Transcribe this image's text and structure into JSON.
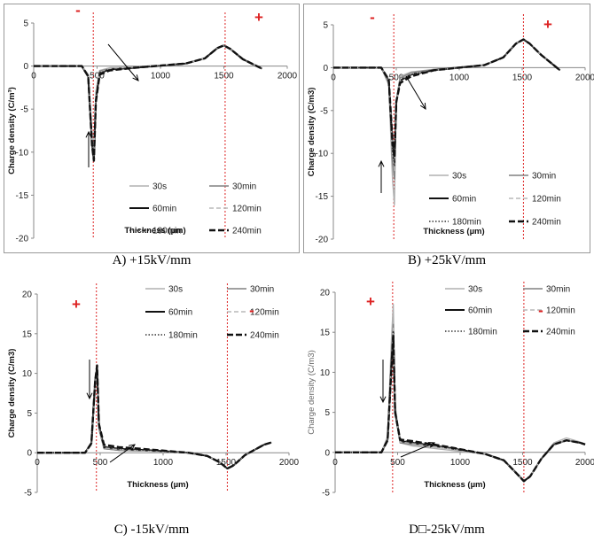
{
  "figure": {
    "captions": [
      "A) +15kV/mm",
      "B) +25kV/mm",
      "C) -15kV/mm",
      "D□-25kV/mm"
    ]
  },
  "styles": {
    "30s": {
      "color": "#b0b0b0",
      "dash": "",
      "width": 1.4
    },
    "30min": {
      "color": "#808080",
      "dash": "",
      "width": 1.4
    },
    "60min": {
      "color": "#111111",
      "dash": "",
      "width": 2.0
    },
    "120min": {
      "color": "#b8b8b8",
      "dash": "5,3",
      "width": 1.4
    },
    "180min": {
      "color": "#333333",
      "dash": "1.5,2",
      "width": 1.6
    },
    "240min": {
      "color": "#111111",
      "dash": "7,3",
      "width": 2.4
    },
    "electrode_line_color": "#dd2222",
    "polarity_color": "#dd2222"
  },
  "chart_data": [
    {
      "type": "line",
      "caption": "A) +15kV/mm",
      "xlabel": "Thickness (µm)",
      "ylabel": "Charge density (C/m³)",
      "xlim": [
        0,
        2000
      ],
      "ylim": [
        -20,
        5
      ],
      "xticks": [
        0,
        500,
        1000,
        1500,
        2000
      ],
      "yticks": [
        5,
        0,
        -5,
        -10,
        -15,
        -20
      ],
      "grid": false,
      "legend_position": "bottom-right",
      "polarity_left": "-",
      "polarity_right": "+",
      "electrode_lines_x": [
        470,
        1510
      ],
      "series": [
        {
          "name": "30s",
          "x": [
            0,
            380,
            430,
            460,
            475,
            490,
            520,
            600,
            800,
            1200,
            1350,
            1450,
            1500,
            1550,
            1650,
            1800
          ],
          "y": [
            0,
            0,
            -1,
            -8,
            -10,
            -3,
            -0.5,
            -0.2,
            -0.1,
            0.3,
            0.9,
            2.1,
            2.4,
            2.0,
            0.8,
            -0.3
          ]
        },
        {
          "name": "30min",
          "x": [
            0,
            380,
            430,
            460,
            475,
            490,
            520,
            600,
            800,
            1200,
            1350,
            1450,
            1500,
            1550,
            1650,
            1800
          ],
          "y": [
            0,
            0,
            -1,
            -8.5,
            -10.5,
            -3.5,
            -0.6,
            -0.3,
            -0.1,
            0.3,
            0.9,
            2.1,
            2.4,
            2.0,
            0.8,
            -0.3
          ]
        },
        {
          "name": "60min",
          "x": [
            0,
            380,
            430,
            460,
            475,
            490,
            520,
            600,
            800,
            1200,
            1350,
            1450,
            1500,
            1550,
            1650,
            1800
          ],
          "y": [
            0,
            0,
            -1.2,
            -9,
            -11,
            -4,
            -0.8,
            -0.4,
            -0.2,
            0.3,
            0.9,
            2.1,
            2.4,
            2.0,
            0.8,
            -0.3
          ]
        },
        {
          "name": "120min",
          "x": [
            0,
            380,
            430,
            460,
            475,
            490,
            520,
            600,
            800,
            1200,
            1350,
            1450,
            1500,
            1550,
            1650,
            1800
          ],
          "y": [
            0,
            0,
            -1,
            -8.5,
            -10.5,
            -3.5,
            -0.7,
            -0.3,
            -0.1,
            0.3,
            0.9,
            2.1,
            2.4,
            2.0,
            0.8,
            -0.3
          ]
        },
        {
          "name": "180min",
          "x": [
            0,
            380,
            430,
            460,
            475,
            490,
            520,
            600,
            800,
            1200,
            1350,
            1450,
            1500,
            1550,
            1650,
            1800
          ],
          "y": [
            0,
            0,
            -1.1,
            -9,
            -10.8,
            -4,
            -0.8,
            -0.4,
            -0.2,
            0.3,
            0.9,
            2.1,
            2.4,
            2.0,
            0.8,
            -0.3
          ]
        },
        {
          "name": "240min",
          "x": [
            0,
            380,
            430,
            460,
            475,
            490,
            520,
            600,
            800,
            1200,
            1350,
            1450,
            1500,
            1550,
            1650,
            1800
          ],
          "y": [
            0,
            0,
            -1.2,
            -9.2,
            -11,
            -4.2,
            -1,
            -0.5,
            -0.2,
            0.3,
            0.9,
            2.1,
            2.4,
            2.0,
            0.8,
            -0.3
          ]
        }
      ]
    },
    {
      "type": "line",
      "caption": "B) +25kV/mm",
      "xlabel": "Thickness (µm)",
      "ylabel": "Charge density (C/m3)",
      "xlim": [
        0,
        2000
      ],
      "ylim": [
        -20,
        5
      ],
      "xticks": [
        0,
        500,
        1000,
        1500,
        2000
      ],
      "yticks": [
        5,
        0,
        -5,
        -10,
        -15,
        -20
      ],
      "grid": false,
      "legend_position": "bottom-right",
      "polarity_left": "-",
      "polarity_right": "+",
      "electrode_lines_x": [
        480,
        1510
      ],
      "series": [
        {
          "name": "30s",
          "x": [
            0,
            380,
            440,
            470,
            485,
            500,
            530,
            620,
            800,
            1200,
            1350,
            1450,
            1510,
            1560,
            1650,
            1800
          ],
          "y": [
            0,
            0,
            -2,
            -13,
            -16,
            -4,
            -1,
            -0.5,
            -0.2,
            0.3,
            1.2,
            2.8,
            3.3,
            2.8,
            1.5,
            -0.3
          ]
        },
        {
          "name": "30min",
          "x": [
            0,
            380,
            440,
            470,
            485,
            500,
            530,
            620,
            800,
            1200,
            1350,
            1450,
            1510,
            1560,
            1650,
            1800
          ],
          "y": [
            0,
            0,
            -1.8,
            -11,
            -13,
            -4,
            -1.2,
            -0.6,
            -0.2,
            0.3,
            1.2,
            2.8,
            3.3,
            2.8,
            1.5,
            -0.3
          ]
        },
        {
          "name": "60min",
          "x": [
            0,
            380,
            440,
            470,
            485,
            500,
            530,
            620,
            800,
            1200,
            1350,
            1450,
            1510,
            1560,
            1650,
            1800
          ],
          "y": [
            0,
            0,
            -1.5,
            -9,
            -11,
            -4,
            -1.5,
            -0.8,
            -0.3,
            0.3,
            1.2,
            2.8,
            3.3,
            2.8,
            1.5,
            -0.3
          ]
        },
        {
          "name": "120min",
          "x": [
            0,
            380,
            440,
            470,
            485,
            500,
            530,
            620,
            800,
            1200,
            1350,
            1450,
            1510,
            1560,
            1650,
            1800
          ],
          "y": [
            0,
            0,
            -1.6,
            -10,
            -12,
            -4,
            -1.4,
            -0.7,
            -0.3,
            0.3,
            1.2,
            2.8,
            3.3,
            2.8,
            1.5,
            -0.3
          ]
        },
        {
          "name": "180min",
          "x": [
            0,
            380,
            440,
            470,
            485,
            500,
            530,
            620,
            800,
            1200,
            1350,
            1450,
            1510,
            1560,
            1650,
            1800
          ],
          "y": [
            0,
            0,
            -1.5,
            -9.5,
            -11.5,
            -4,
            -1.5,
            -0.8,
            -0.3,
            0.3,
            1.2,
            2.8,
            3.3,
            2.8,
            1.5,
            -0.3
          ]
        },
        {
          "name": "240min",
          "x": [
            0,
            380,
            440,
            470,
            485,
            500,
            530,
            620,
            800,
            1200,
            1350,
            1450,
            1510,
            1560,
            1650,
            1800
          ],
          "y": [
            0,
            0,
            -1.4,
            -8.5,
            -10.5,
            -4,
            -1.8,
            -1,
            -0.3,
            0.3,
            1.2,
            2.8,
            3.3,
            2.8,
            1.5,
            -0.3
          ]
        }
      ]
    },
    {
      "type": "line",
      "caption": "C) -15kV/mm",
      "xlabel": "Thickness (µm)",
      "ylabel": "Charge density (C/m3)",
      "xlim": [
        0,
        2000
      ],
      "ylim": [
        -5,
        20
      ],
      "xticks": [
        0,
        500,
        1000,
        1500,
        2000
      ],
      "yticks": [
        20,
        15,
        10,
        5,
        0,
        -5
      ],
      "grid": false,
      "legend_position": "top-right",
      "polarity_left": "+",
      "polarity_right": "-",
      "electrode_lines_x": [
        470,
        1510
      ],
      "series": [
        {
          "name": "30s",
          "x": [
            0,
            380,
            430,
            460,
            475,
            490,
            530,
            650,
            900,
            1200,
            1350,
            1450,
            1510,
            1560,
            1650,
            1800,
            1860
          ],
          "y": [
            0,
            0,
            1,
            8,
            10,
            3,
            0.5,
            0.3,
            0.2,
            0,
            -0.4,
            -1.2,
            -2,
            -1.6,
            -0.3,
            1,
            1.3
          ]
        },
        {
          "name": "30min",
          "x": [
            0,
            380,
            430,
            460,
            475,
            490,
            530,
            650,
            900,
            1200,
            1350,
            1450,
            1510,
            1560,
            1650,
            1800,
            1860
          ],
          "y": [
            0,
            0,
            1,
            8.5,
            10.3,
            3,
            0.5,
            0.3,
            0.2,
            0,
            -0.4,
            -1.2,
            -2,
            -1.6,
            -0.3,
            1,
            1.3
          ]
        },
        {
          "name": "60min",
          "x": [
            0,
            380,
            430,
            460,
            475,
            490,
            530,
            650,
            900,
            1200,
            1350,
            1450,
            1510,
            1560,
            1650,
            1800,
            1860
          ],
          "y": [
            0,
            0,
            1.2,
            9,
            10.8,
            3.5,
            0.7,
            0.5,
            0.3,
            0,
            -0.4,
            -1.2,
            -2,
            -1.6,
            -0.3,
            1,
            1.3
          ]
        },
        {
          "name": "120min",
          "x": [
            0,
            380,
            430,
            460,
            475,
            490,
            530,
            650,
            900,
            1200,
            1350,
            1450,
            1510,
            1560,
            1650,
            1800,
            1860
          ],
          "y": [
            0,
            0,
            1,
            8.5,
            10.4,
            3.2,
            0.6,
            0.4,
            0.2,
            0,
            -0.4,
            -1.2,
            -2,
            -1.6,
            -0.3,
            1,
            1.3
          ]
        },
        {
          "name": "180min",
          "x": [
            0,
            380,
            430,
            460,
            475,
            490,
            530,
            650,
            900,
            1200,
            1350,
            1450,
            1510,
            1560,
            1650,
            1800,
            1860
          ],
          "y": [
            0,
            0,
            1.1,
            8.8,
            10.6,
            3.4,
            0.8,
            0.5,
            0.3,
            0,
            -0.4,
            -1.2,
            -2,
            -1.6,
            -0.3,
            1,
            1.3
          ]
        },
        {
          "name": "240min",
          "x": [
            0,
            380,
            430,
            460,
            475,
            490,
            530,
            650,
            900,
            1200,
            1350,
            1450,
            1510,
            1560,
            1650,
            1800,
            1860
          ],
          "y": [
            0,
            0,
            1.2,
            9,
            11,
            3.6,
            1,
            0.7,
            0.4,
            0,
            -0.4,
            -1.2,
            -2,
            -1.6,
            -0.3,
            1,
            1.3
          ]
        }
      ]
    },
    {
      "type": "line",
      "caption": "D□-25kV/mm",
      "xlabel": "Thickness (µm)",
      "ylabel": "Charge density (C/m3)",
      "xlim": [
        0,
        2000
      ],
      "ylim": [
        -5,
        20
      ],
      "xticks": [
        0,
        500,
        1000,
        1500,
        2000
      ],
      "yticks": [
        20,
        15,
        10,
        5,
        0,
        -5
      ],
      "grid": false,
      "legend_position": "top-right",
      "polarity_left": "+",
      "polarity_right": "-",
      "electrode_lines_x": [
        460,
        1510
      ],
      "series": [
        {
          "name": "30s",
          "x": [
            0,
            370,
            420,
            450,
            465,
            480,
            520,
            620,
            900,
            1200,
            1350,
            1450,
            1510,
            1560,
            1650,
            1750,
            1850,
            1960,
            2000
          ],
          "y": [
            0,
            0,
            2,
            14,
            18.5,
            6,
            1.2,
            0.8,
            0.3,
            -0.2,
            -1,
            -2.5,
            -3.5,
            -3,
            -0.8,
            1.2,
            1.8,
            1.3,
            1
          ]
        },
        {
          "name": "30min",
          "x": [
            0,
            370,
            420,
            450,
            465,
            480,
            520,
            620,
            900,
            1200,
            1350,
            1450,
            1510,
            1560,
            1650,
            1750,
            1850,
            1960,
            2000
          ],
          "y": [
            0,
            0,
            1.8,
            12,
            16,
            5,
            1.2,
            1,
            0.5,
            -0.2,
            -1,
            -2.6,
            -3.6,
            -3,
            -0.8,
            1,
            1.5,
            1.2,
            1
          ]
        },
        {
          "name": "60min",
          "x": [
            0,
            370,
            420,
            450,
            465,
            480,
            520,
            620,
            900,
            1200,
            1350,
            1450,
            1510,
            1560,
            1650,
            1750,
            1850,
            1960,
            2000
          ],
          "y": [
            0,
            0,
            1.6,
            11,
            15,
            5,
            1.4,
            1.2,
            0.6,
            -0.2,
            -1,
            -2.6,
            -3.6,
            -3,
            -0.8,
            1,
            1.5,
            1.2,
            1
          ]
        },
        {
          "name": "120min",
          "x": [
            0,
            370,
            420,
            450,
            465,
            480,
            520,
            620,
            900,
            1200,
            1350,
            1450,
            1510,
            1560,
            1650,
            1750,
            1850,
            1960,
            2000
          ],
          "y": [
            0,
            0,
            1.7,
            11.5,
            15.5,
            5,
            1.3,
            1.1,
            0.5,
            -0.2,
            -1,
            -2.6,
            -3.6,
            -3,
            -0.8,
            1,
            1.5,
            1.2,
            1
          ]
        },
        {
          "name": "180min",
          "x": [
            0,
            370,
            420,
            450,
            465,
            480,
            520,
            620,
            900,
            1200,
            1350,
            1450,
            1510,
            1560,
            1650,
            1750,
            1850,
            1960,
            2000
          ],
          "y": [
            0,
            0,
            1.6,
            11,
            15.2,
            5,
            1.5,
            1.3,
            0.6,
            -0.2,
            -1,
            -2.6,
            -3.6,
            -3,
            -0.8,
            1,
            1.5,
            1.2,
            1
          ]
        },
        {
          "name": "240min",
          "x": [
            0,
            370,
            420,
            450,
            465,
            480,
            520,
            620,
            900,
            1200,
            1350,
            1450,
            1510,
            1560,
            1650,
            1750,
            1850,
            1960,
            2000
          ],
          "y": [
            0,
            0,
            1.5,
            10.5,
            14.5,
            5,
            1.6,
            1.4,
            0.7,
            -0.2,
            -1,
            -2.6,
            -3.6,
            -3,
            -0.8,
            1,
            1.5,
            1.2,
            1
          ]
        }
      ]
    }
  ]
}
